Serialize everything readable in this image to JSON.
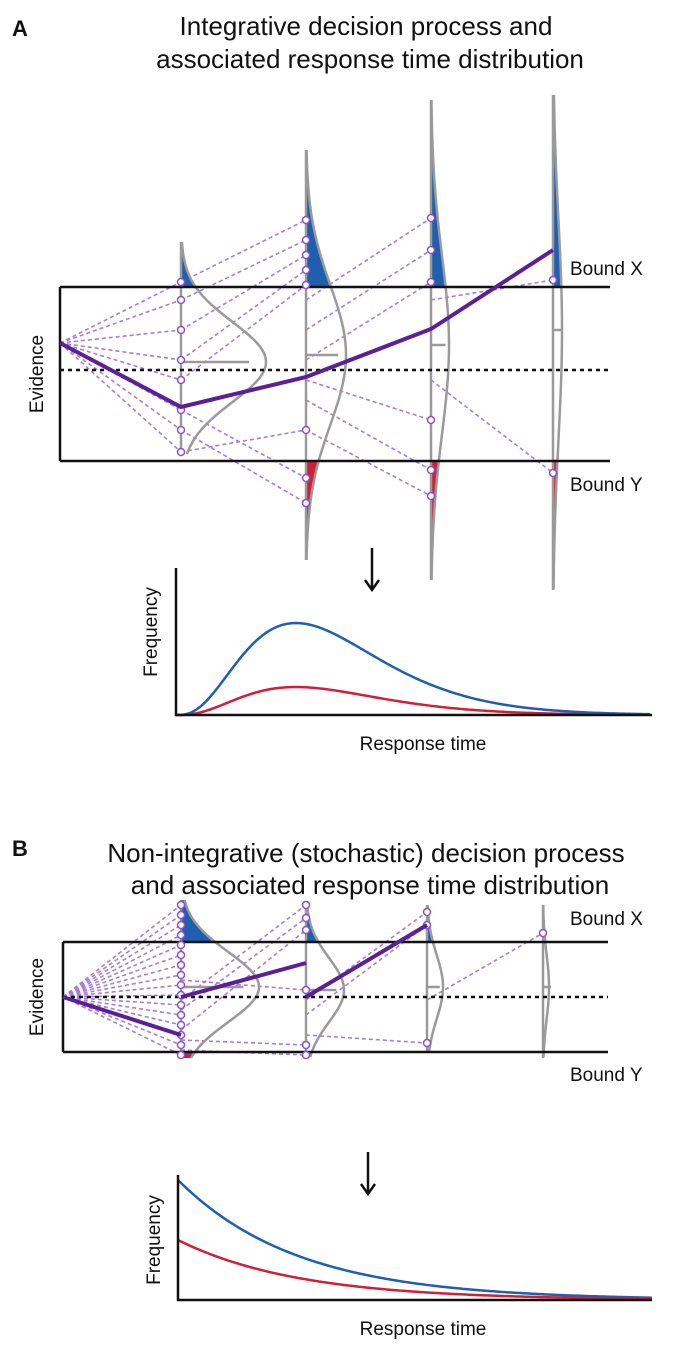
{
  "panels": [
    {
      "label": "A",
      "title_lines": [
        "Integrative decision process and",
        "associated response time distribution"
      ],
      "bound_x": "Bound X",
      "bound_y": "Bound Y",
      "y_label": "Evidence",
      "dist_y_label": "Frequency",
      "dist_x_label": "Response time"
    },
    {
      "label": "B",
      "title_lines": [
        "Non-integrative (stochastic) decision process",
        "and associated response time distribution"
      ],
      "bound_x": "Bound X",
      "bound_y": "Bound Y",
      "y_label": "Evidence",
      "dist_y_label": "Frequency",
      "dist_x_label": "Response time"
    }
  ]
}
